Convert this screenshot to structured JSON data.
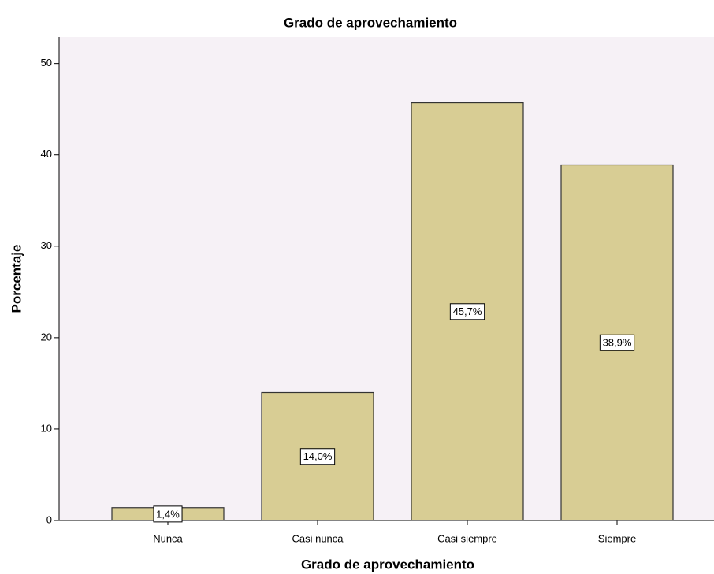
{
  "chart_data": {
    "type": "bar",
    "title": "Grado de aprovechamiento",
    "x_label": "Grado de aprovechamiento",
    "y_label": "Porcentaje",
    "categories": [
      "Nunca",
      "Casi nunca",
      "Casi siempre",
      "Siempre"
    ],
    "values": [
      1.4,
      14.0,
      45.7,
      38.9
    ],
    "value_labels": [
      "1,4%",
      "14,0%",
      "45,7%",
      "38,9%"
    ],
    "color": "#d8cd94",
    "ylim": [
      0,
      52.9
    ],
    "yticks": [
      0,
      10,
      20,
      30,
      40,
      50
    ],
    "grid": false
  }
}
